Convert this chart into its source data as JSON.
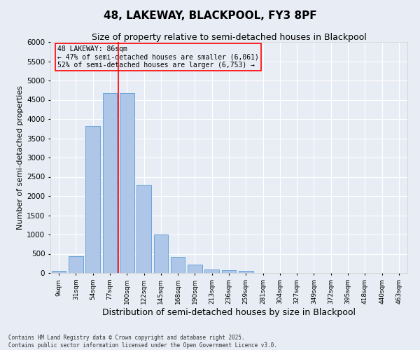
{
  "title": "48, LAKEWAY, BLACKPOOL, FY3 8PF",
  "subtitle": "Size of property relative to semi-detached houses in Blackpool",
  "xlabel": "Distribution of semi-detached houses by size in Blackpool",
  "ylabel": "Number of semi-detached properties",
  "footer": "Contains HM Land Registry data © Crown copyright and database right 2025.\nContains public sector information licensed under the Open Government Licence v3.0.",
  "bar_categories": [
    "9sqm",
    "31sqm",
    "54sqm",
    "77sqm",
    "100sqm",
    "122sqm",
    "145sqm",
    "168sqm",
    "190sqm",
    "213sqm",
    "236sqm",
    "259sqm",
    "281sqm",
    "304sqm",
    "327sqm",
    "349sqm",
    "372sqm",
    "395sqm",
    "418sqm",
    "440sqm",
    "463sqm"
  ],
  "bar_values": [
    50,
    430,
    3820,
    4680,
    4680,
    2300,
    1000,
    410,
    210,
    90,
    75,
    60,
    0,
    0,
    0,
    0,
    0,
    0,
    0,
    0,
    0
  ],
  "bar_color": "#aec6e8",
  "bar_edgecolor": "#5b9bd5",
  "vline_x": 4.0,
  "vline_color": "red",
  "annotation_title": "48 LAKEWAY: 86sqm",
  "annotation_line1": "← 47% of semi-detached houses are smaller (6,061)",
  "annotation_line2": "52% of semi-detached houses are larger (6,753) →",
  "annotation_box_color": "red",
  "ylim": [
    0,
    6000
  ],
  "yticks": [
    0,
    500,
    1000,
    1500,
    2000,
    2500,
    3000,
    3500,
    4000,
    4500,
    5000,
    5500,
    6000
  ],
  "bg_color": "#e8edf5",
  "grid_color": "white",
  "title_fontsize": 11,
  "subtitle_fontsize": 9,
  "ylabel_fontsize": 8,
  "xlabel_fontsize": 9,
  "bar_width": 0.85
}
